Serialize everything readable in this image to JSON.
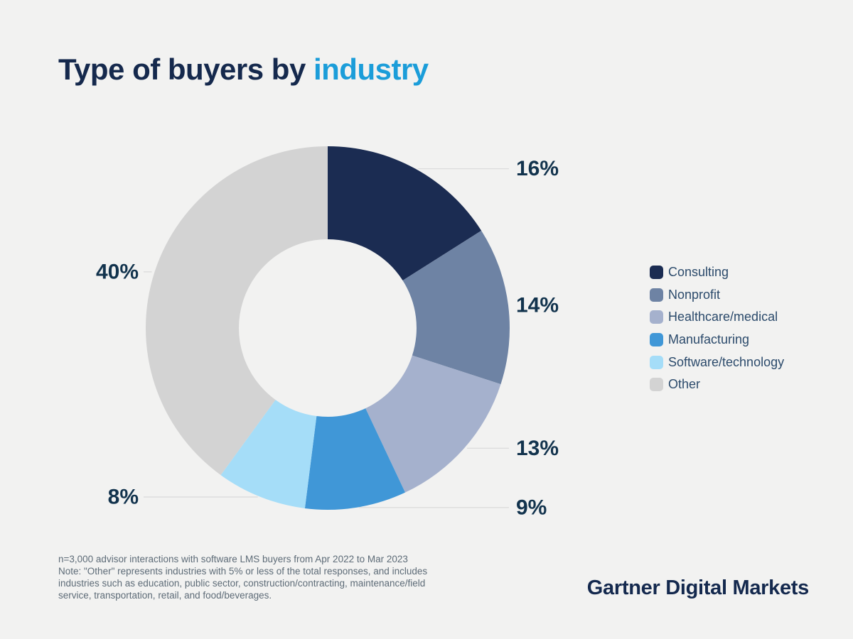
{
  "page": {
    "background_color": "#f2f2f1"
  },
  "title": {
    "prefix": "Type of buyers by ",
    "highlight": "industry",
    "prefix_color": "#15294d",
    "highlight_color": "#1b9dd9"
  },
  "chart_data": {
    "type": "pie",
    "subtype": "donut",
    "title": "Type of buyers by industry",
    "start_angle_deg": 0,
    "direction": "clockwise",
    "legend_position": "right",
    "label_color": "#12334d",
    "leader_line_color": "#d9d9d9",
    "segments": [
      {
        "label": "Consulting",
        "value": 16,
        "display": "16%",
        "color": "#1b2c52"
      },
      {
        "label": "Nonprofit",
        "value": 14,
        "display": "14%",
        "color": "#6e83a4"
      },
      {
        "label": "Healthcare/medical",
        "value": 13,
        "display": "13%",
        "color": "#a5b1cd"
      },
      {
        "label": "Manufacturing",
        "value": 9,
        "display": "9%",
        "color": "#4097d7"
      },
      {
        "label": "Software/technology",
        "value": 8,
        "display": "8%",
        "color": "#a5ddf8"
      },
      {
        "label": "Other",
        "value": 40,
        "display": "40%",
        "color": "#d3d3d3"
      }
    ]
  },
  "footnote": {
    "lines": [
      "n=3,000 advisor interactions with software LMS buyers from Apr 2022 to Mar 2023",
      "Note: \"Other\" represents industries with 5% or less of the total responses, and includes",
      "industries such as education, public sector, construction/contracting, maintenance/field",
      "service, transportation, retail, and food/beverages."
    ]
  },
  "branding": {
    "text": "Gartner Digital Markets"
  }
}
